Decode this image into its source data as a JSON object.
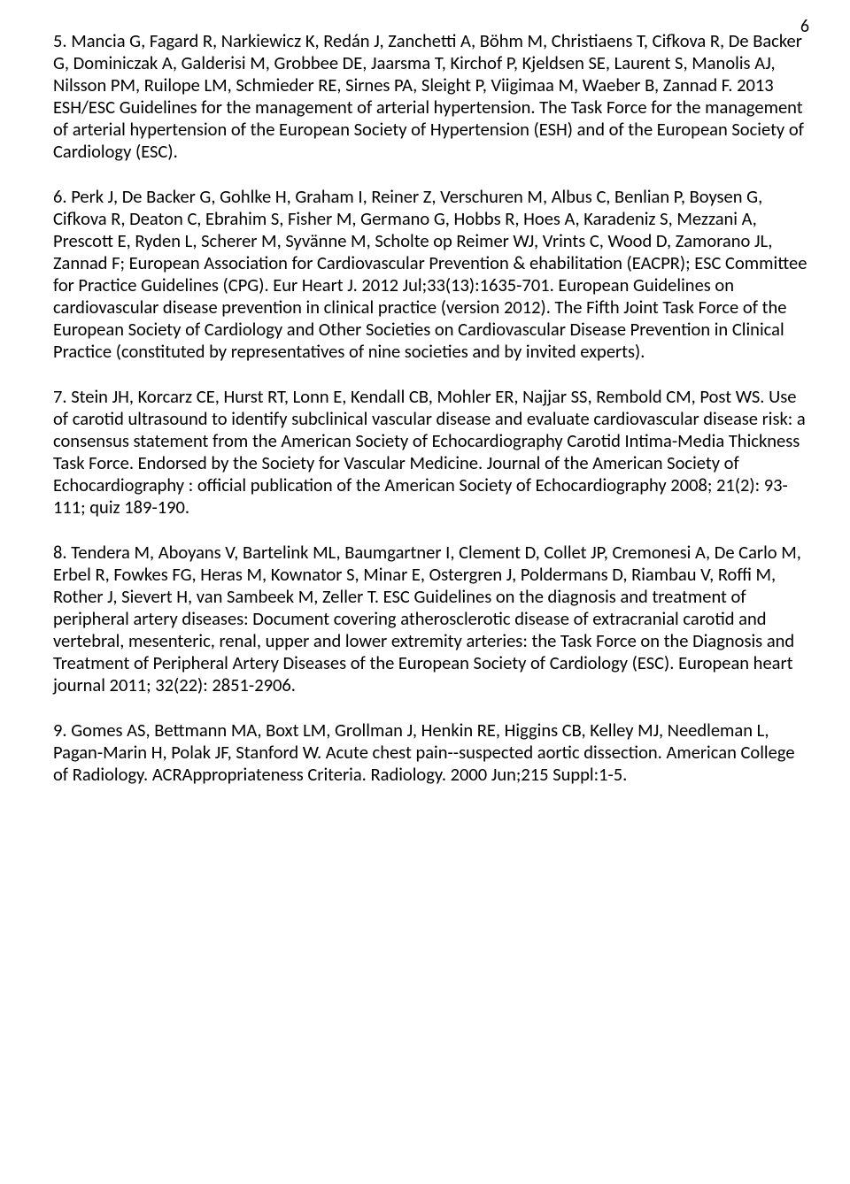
{
  "page_number": "6",
  "references": {
    "r5": "5. Mancia G, Fagard R, Narkiewicz K, Redán J, Zanchetti A, Böhm M, Christiaens T, Cifkova R, De Backer G, Dominiczak A, Galderisi M, Grobbee DE, Jaarsma T, Kirchof P, Kjeldsen SE, Laurent S, Manolis AJ, Nilsson PM, Ruilope LM, Schmieder RE, Sirnes PA, Sleight P, Viigimaa M, Waeber B, Zannad F. 2013 ESH/ESC Guidelines for the management of arterial hypertension. The Task Force for the management of arterial hypertension of the European Society of Hypertension (ESH) and of the European Society of Cardiology (ESC).",
    "r6": "6. Perk J, De Backer G, Gohlke H, Graham I, Reiner Z, Verschuren M, Albus C, Benlian P, Boysen G, Cifkova R, Deaton C, Ebrahim S, Fisher M, Germano G, Hobbs R, Hoes A, Karadeniz S, Mezzani A, Prescott E, Ryden L, Scherer M, Syvänne M, Scholte op Reimer WJ, Vrints C, Wood D, Zamorano JL, Zannad F; European Association for Cardiovascular Prevention & ehabilitation (EACPR); ESC Committee for Practice Guidelines (CPG). Eur Heart J. 2012 Jul;33(13):1635-701. European Guidelines on cardiovascular disease prevention in clinical practice (version 2012). The Fifth Joint Task Force of the European Society of Cardiology  and Other Societies on Cardiovascular Disease Prevention in Clinical Practice (constituted by representatives of nine societies and by invited experts).",
    "r7": "7. Stein JH, Korcarz CE, Hurst RT, Lonn E, Kendall CB, Mohler ER, Najjar SS, Rembold CM, Post WS. Use of carotid ultrasound to identify subclinical vascular disease and evaluate cardiovascular disease risk: a consensus statement from the American Society of Echocardiography Carotid Intima-Media Thickness Task Force. Endorsed by the Society for Vascular Medicine. Journal of the American Society of Echocardiography : official publication of the American Society of Echocardiography 2008; 21(2): 93-111; quiz 189-190.",
    "r8": "8. Tendera M, Aboyans V, Bartelink ML, Baumgartner I, Clement D, Collet JP, Cremonesi A, De Carlo M, Erbel R, Fowkes FG, Heras M, Kownator S, Minar E, Ostergren J, Poldermans D, Riambau V, Roffi M, Rother J, Sievert H, van Sambeek M, Zeller T. ESC Guidelines on the diagnosis and treatment of peripheral artery diseases: Document covering atherosclerotic disease of extracranial carotid and vertebral, mesenteric, renal, upper and lower extremity arteries: the Task Force on the Diagnosis and Treatment of Peripheral Artery Diseases of the European Society of Cardiology (ESC). European heart journal 2011; 32(22): 2851-2906.",
    "r9": "9. Gomes AS, Bettmann MA, Boxt LM, Grollman J, Henkin RE, Higgins CB, Kelley MJ, Needleman L, Pagan-Marin H, Polak JF, Stanford W. Acute chest pain--suspected aortic dissection. American College of Radiology. ACRAppropriateness Criteria. Radiology. 2000 Jun;215 Suppl:1-5."
  }
}
